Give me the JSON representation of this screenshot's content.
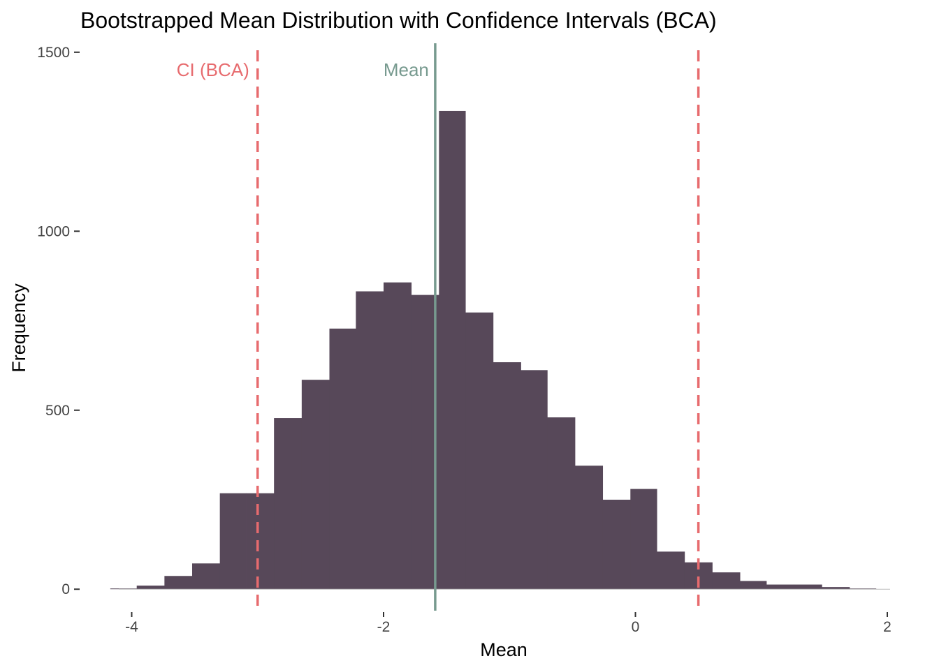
{
  "colors": {
    "bar": "#574859",
    "mean_line": "#779A8F",
    "ci_line": "#E76B6E",
    "axis": "#333333",
    "baseline": "#BBBBBB"
  },
  "chart_data": {
    "type": "bar",
    "title": "Bootstrapped Mean Distribution with Confidence Intervals (BCA)",
    "xlabel": "Mean",
    "ylabel": "Frequency",
    "xlim": [
      -4.38,
      2.0
    ],
    "ylim": [
      -60,
      1525
    ],
    "xticks": [
      -4,
      -2,
      0,
      2
    ],
    "xtick_labels": [
      "-4",
      "-2",
      "0",
      "2"
    ],
    "yticks": [
      0,
      500,
      1000,
      1500
    ],
    "ytick_labels": [
      "0",
      "500",
      "1000",
      "1500"
    ],
    "grid": false,
    "bin_width": 0.2174,
    "bins": [
      {
        "x0": -4.17,
        "x1": -3.96,
        "count": 2
      },
      {
        "x0": -3.96,
        "x1": -3.74,
        "count": 10
      },
      {
        "x0": -3.74,
        "x1": -3.52,
        "count": 37
      },
      {
        "x0": -3.52,
        "x1": -3.3,
        "count": 72
      },
      {
        "x0": -3.3,
        "x1": -3.09,
        "count": 268
      },
      {
        "x0": -3.09,
        "x1": -2.87,
        "count": 268
      },
      {
        "x0": -2.87,
        "x1": -2.65,
        "count": 478
      },
      {
        "x0": -2.65,
        "x1": -2.43,
        "count": 585
      },
      {
        "x0": -2.43,
        "x1": -2.22,
        "count": 728
      },
      {
        "x0": -2.22,
        "x1": -2.0,
        "count": 832
      },
      {
        "x0": -2.0,
        "x1": -1.78,
        "count": 857
      },
      {
        "x0": -1.78,
        "x1": -1.56,
        "count": 822
      },
      {
        "x0": -1.56,
        "x1": -1.35,
        "count": 1336
      },
      {
        "x0": -1.35,
        "x1": -1.13,
        "count": 773
      },
      {
        "x0": -1.13,
        "x1": -0.91,
        "count": 634
      },
      {
        "x0": -0.91,
        "x1": -0.7,
        "count": 612
      },
      {
        "x0": -0.7,
        "x1": -0.48,
        "count": 480
      },
      {
        "x0": -0.48,
        "x1": -0.26,
        "count": 345
      },
      {
        "x0": -0.26,
        "x1": -0.04,
        "count": 250
      },
      {
        "x0": -0.04,
        "x1": 0.17,
        "count": 280
      },
      {
        "x0": 0.17,
        "x1": 0.39,
        "count": 105
      },
      {
        "x0": 0.39,
        "x1": 0.61,
        "count": 75
      },
      {
        "x0": 0.61,
        "x1": 0.83,
        "count": 47
      },
      {
        "x0": 0.83,
        "x1": 1.04,
        "count": 23
      },
      {
        "x0": 1.04,
        "x1": 1.26,
        "count": 13
      },
      {
        "x0": 1.26,
        "x1": 1.48,
        "count": 13
      },
      {
        "x0": 1.48,
        "x1": 1.7,
        "count": 6
      },
      {
        "x0": 1.7,
        "x1": 1.91,
        "count": 2
      }
    ],
    "mean": -1.59,
    "ci_lower": -3.0,
    "ci_upper": 0.5,
    "annotations": {
      "mean_label": "Mean",
      "ci_label": "CI (BCA)"
    }
  }
}
